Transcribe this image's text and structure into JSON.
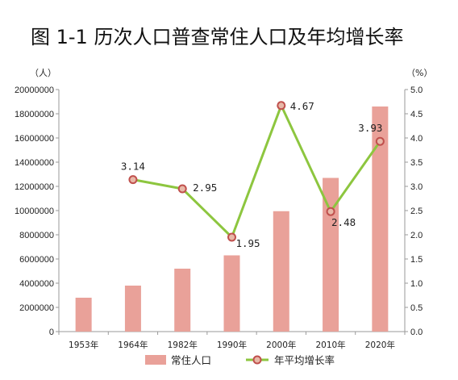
{
  "title": "图 1-1    历次人口普查常住人口及年均增长率",
  "chart_data": {
    "type": "bar+line",
    "categories": [
      "1953年",
      "1964年",
      "1982年",
      "1990年",
      "2000年",
      "2010年",
      "2020年"
    ],
    "series": [
      {
        "name": "常住人口",
        "type": "bar",
        "axis": "left",
        "values": [
          2800000,
          3800000,
          5200000,
          6300000,
          9950000,
          12700000,
          18600000
        ],
        "color": "#e9a199"
      },
      {
        "name": "年平均增长率",
        "type": "line",
        "axis": "right",
        "values": [
          null,
          3.14,
          2.95,
          1.95,
          4.67,
          2.48,
          3.93
        ],
        "labels": [
          null,
          "3.14",
          "2.95",
          "1.95",
          "4.67",
          "2.48",
          "3.93"
        ],
        "color": "#8dc63f",
        "marker_color": "#c0504d"
      }
    ],
    "y_left": {
      "unit": "（人）",
      "ylim": [
        0,
        20000000
      ],
      "ticks": [
        "0",
        "2000000",
        "4000000",
        "6000000",
        "8000000",
        "10000000",
        "12000000",
        "14000000",
        "16000000",
        "18000000",
        "20000000"
      ]
    },
    "y_right": {
      "unit": "（%）",
      "ylim": [
        0,
        5
      ],
      "ticks": [
        "0.0",
        "0.5",
        "1.0",
        "1.5",
        "2.0",
        "2.5",
        "3.0",
        "3.5",
        "4.0",
        "4.5",
        "5.0"
      ]
    },
    "grid": false,
    "legend": "bottom"
  }
}
